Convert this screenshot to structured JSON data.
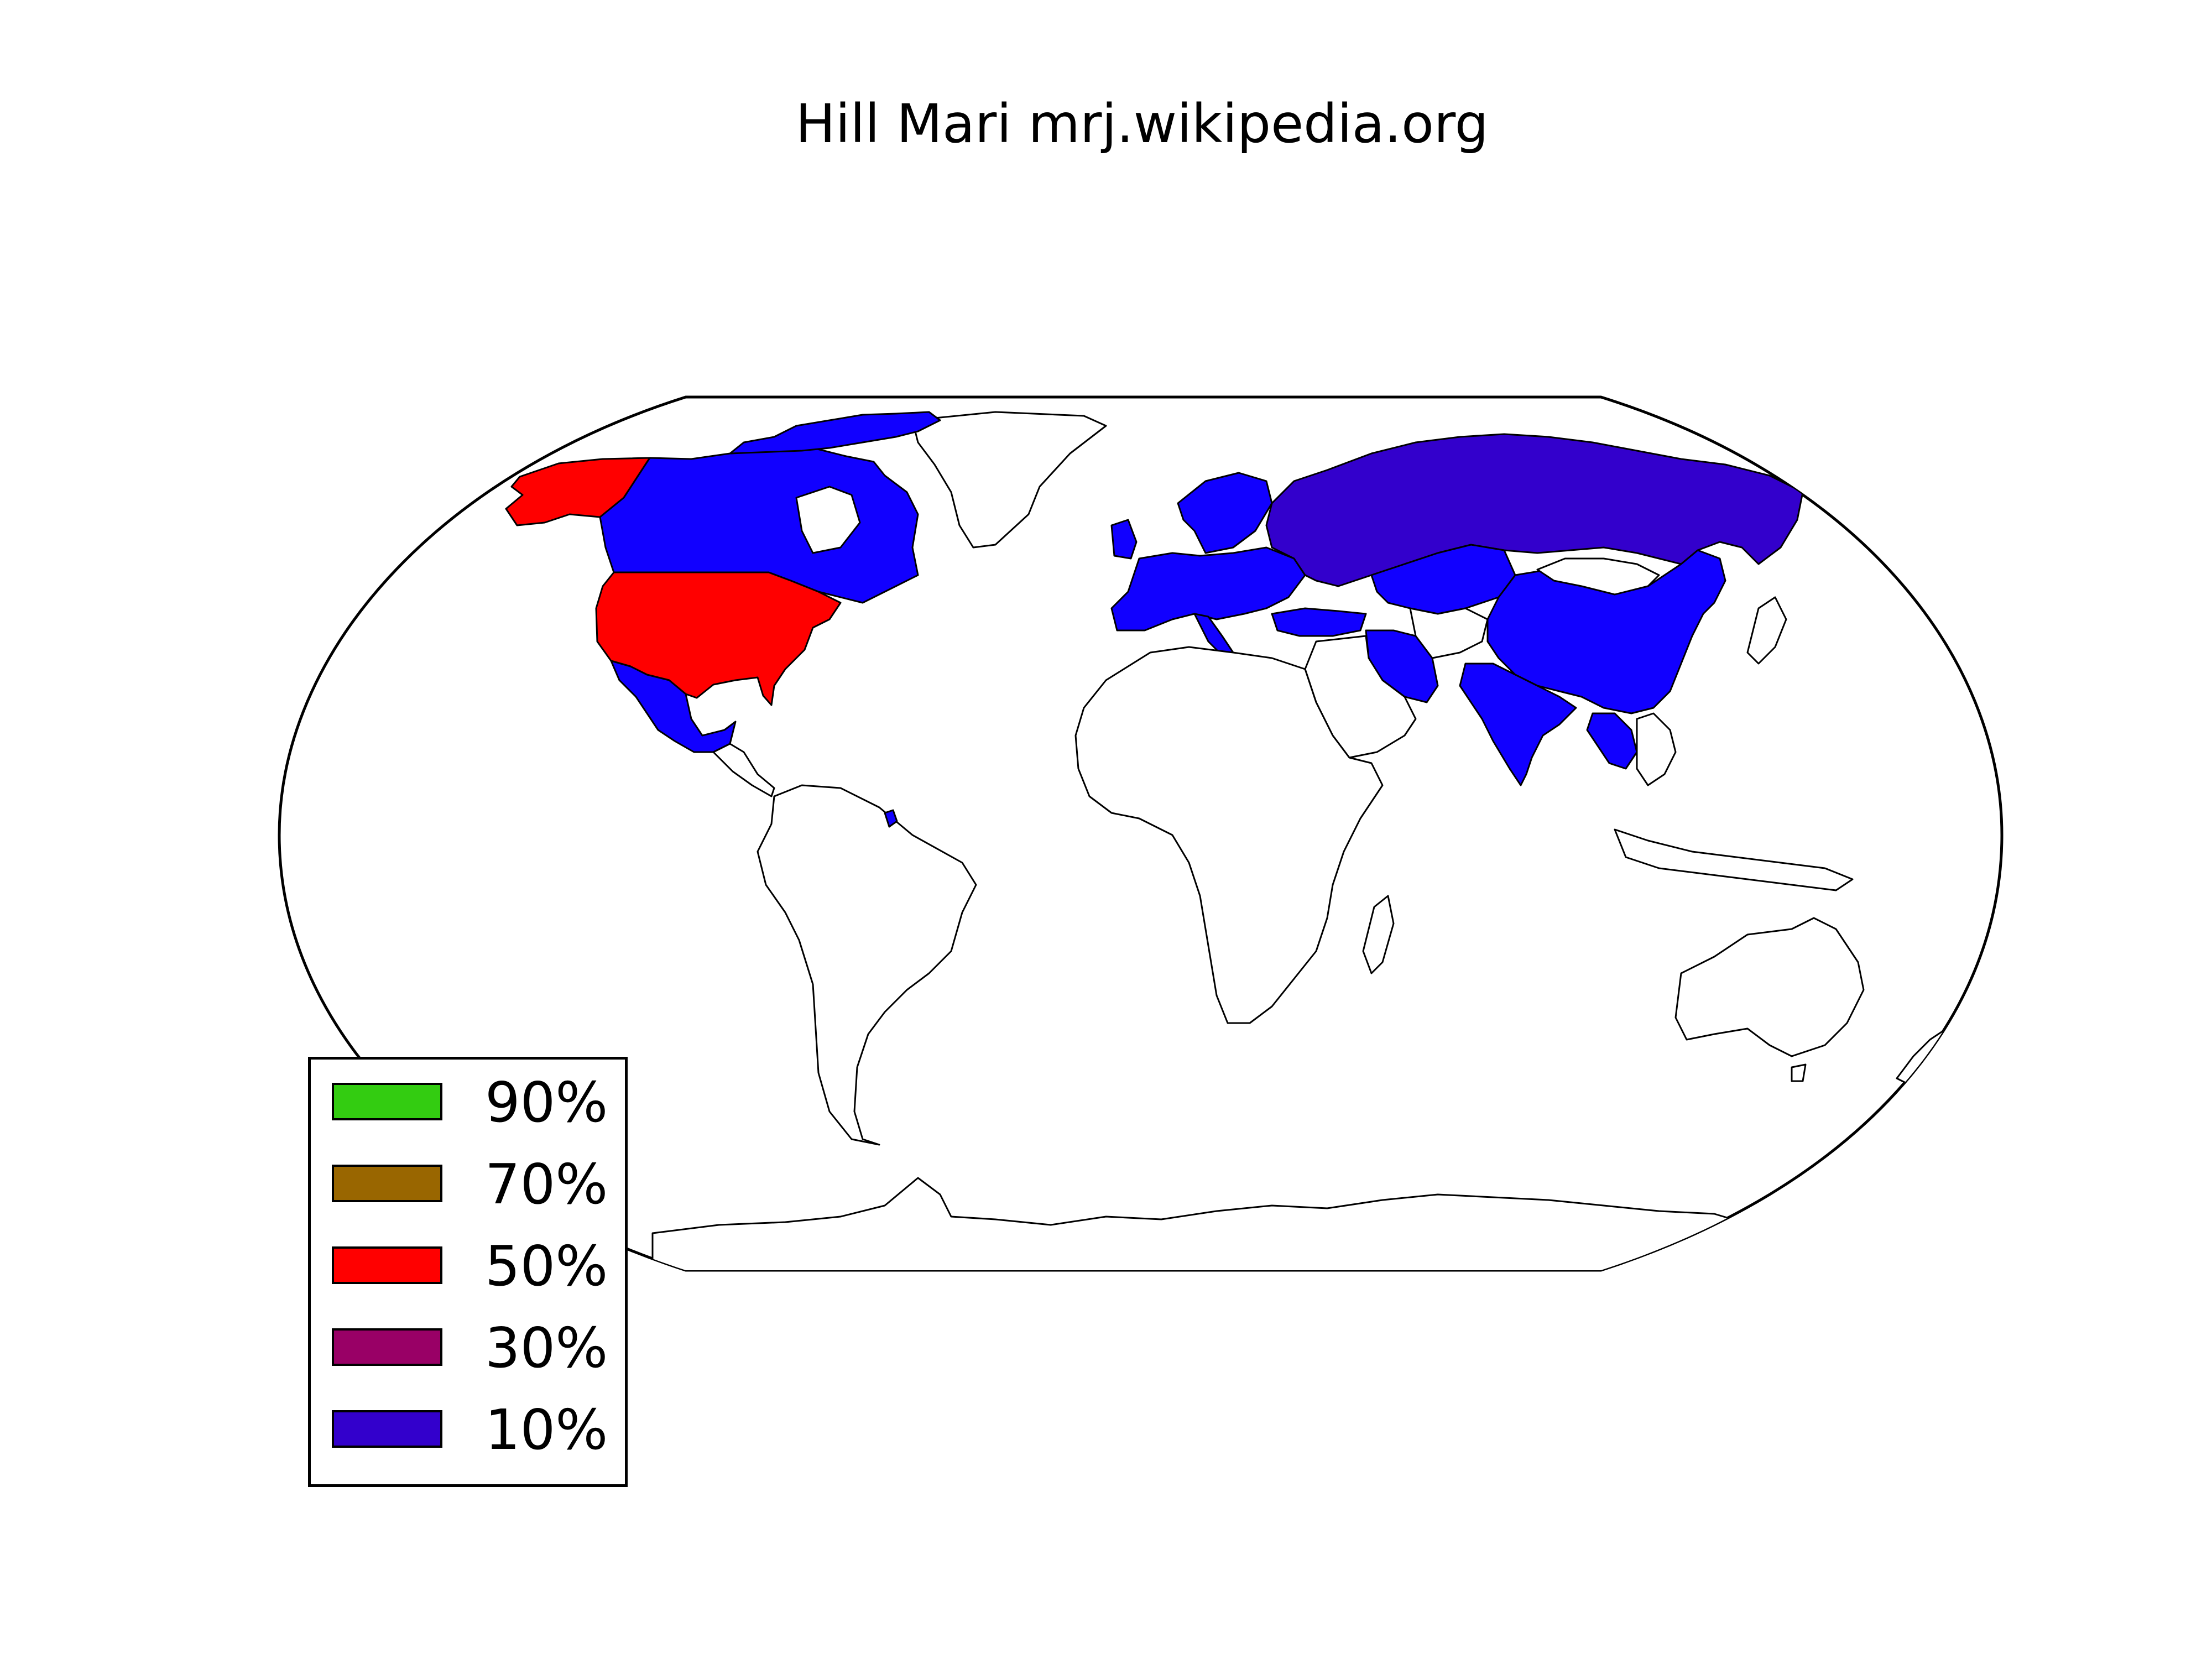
{
  "map": {
    "title": "Hill Mari mrj.wikipedia.org",
    "projection": "Robinson",
    "base_color": "#ffffff",
    "border_color": "#000000"
  },
  "legend": {
    "placement": "lower-left",
    "entries": [
      {
        "label": "90%",
        "color": "#33cc11"
      },
      {
        "label": "70%",
        "color": "#996600"
      },
      {
        "label": "50%",
        "color": "#ff0000"
      },
      {
        "label": "30%",
        "color": "#990066"
      },
      {
        "label": "10%",
        "color": "#3300cc"
      }
    ]
  },
  "regions": {
    "share_50": {
      "color": "#ff0000",
      "names": [
        "United States",
        "Alaska"
      ]
    },
    "share_10": {
      "color": "#3300cc",
      "names": [
        "Canada",
        "Mexico",
        "Russia",
        "China",
        "India",
        "Iran",
        "Turkey",
        "Kazakhstan",
        "Western Europe",
        "Thailand",
        "French Guiana"
      ]
    },
    "bright_blue": "#1100ff"
  }
}
